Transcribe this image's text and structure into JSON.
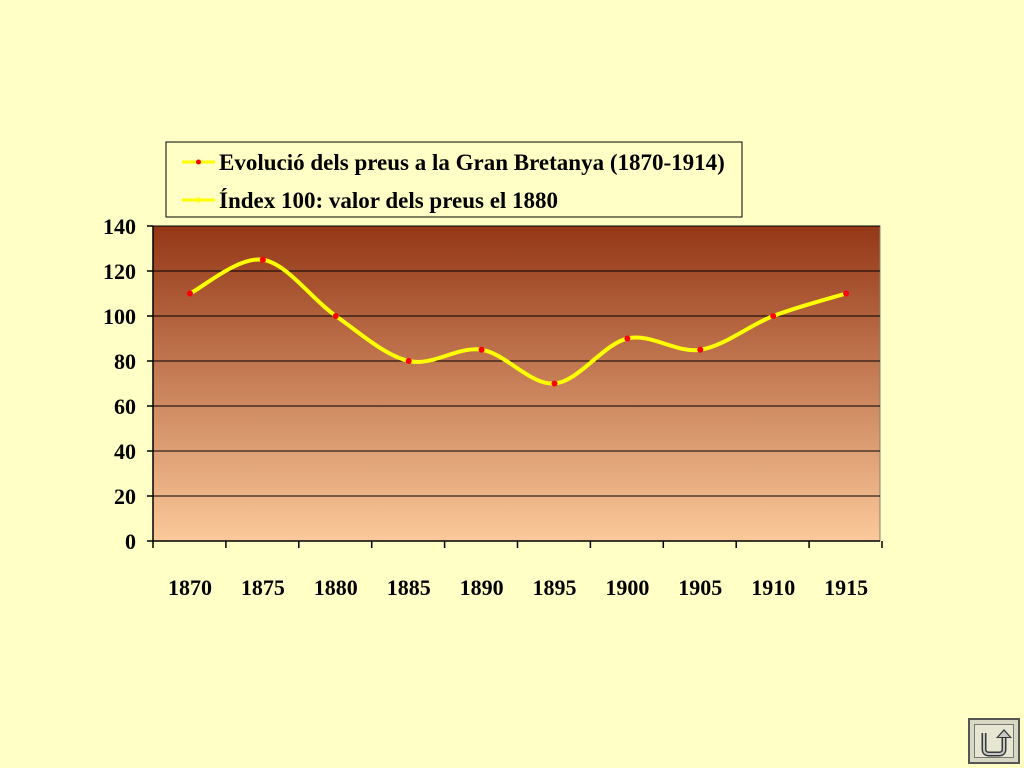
{
  "colors": {
    "background": "#ffffc6",
    "plot_top": "#943717",
    "plot_bottom": "#fbc99a",
    "line": "#ffff00",
    "marker": "#ff0000",
    "gridline": "#000000"
  },
  "chart_data": {
    "type": "line",
    "x": [
      1870,
      1875,
      1880,
      1885,
      1890,
      1895,
      1900,
      1905,
      1910,
      1915
    ],
    "categories": [
      "1870",
      "1875",
      "1880",
      "1885",
      "1890",
      "1895",
      "1900",
      "1905",
      "1910",
      "1915"
    ],
    "series": [
      {
        "name": "Evolució dels preus a la Gran Bretanya (1870-1914)",
        "values": [
          110,
          125,
          100,
          80,
          85,
          70,
          90,
          85,
          100,
          110
        ]
      }
    ],
    "legend": [
      "Evolució dels preus a la Gran Bretanya (1870-1914)",
      "Índex 100: valor dels preus el 1880"
    ],
    "legend_position": "top",
    "ylim": [
      0,
      140
    ],
    "yticks": [
      0,
      20,
      40,
      60,
      80,
      100,
      120,
      140
    ],
    "grid": true,
    "smoothed": true
  },
  "navigation": {
    "back_icon": "return-arrow-icon"
  }
}
